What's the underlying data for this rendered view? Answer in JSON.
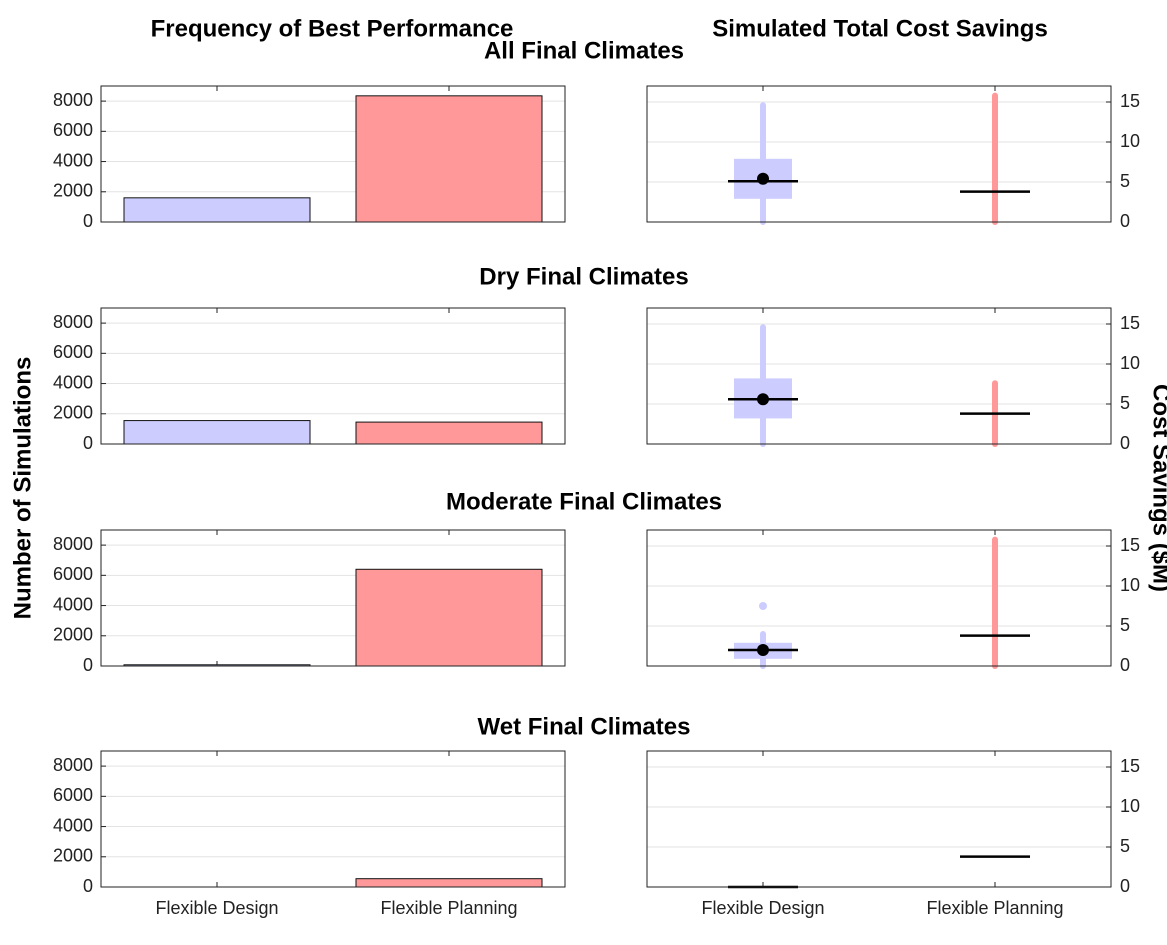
{
  "figure": {
    "column_titles": [
      "Frequency of Best Performance",
      "Simulated Total Cost Savings"
    ],
    "ylabel_left": "Number of Simulations",
    "ylabel_right": "Cost Savings ($M)"
  },
  "chart_data": [
    {
      "type": "bar",
      "title": "All Final Climates",
      "values": [
        1600,
        8350
      ],
      "colors": [
        "#ccccff",
        "#ff9999"
      ],
      "ylim": [
        0,
        9000
      ],
      "yticks": [
        0,
        2000,
        4000,
        6000,
        8000
      ],
      "grid": true
    },
    {
      "type": "box",
      "boxes": [
        {
          "color": "#ccccff",
          "low": 0,
          "q1": 2.9,
          "median": 5.1,
          "q3": 7.9,
          "high": 14.6,
          "mean": 5.4
        },
        {
          "color": "#ff9999",
          "low": 0,
          "median": 3.8,
          "high": 15.8
        }
      ],
      "ylim": [
        0,
        17
      ],
      "yticks": [
        0,
        5,
        10,
        15
      ],
      "grid": true
    },
    {
      "type": "bar",
      "title": "Dry Final Climates",
      "values": [
        1550,
        1450
      ],
      "colors": [
        "#ccccff",
        "#ff9999"
      ],
      "ylim": [
        0,
        9000
      ],
      "yticks": [
        0,
        2000,
        4000,
        6000,
        8000
      ],
      "grid": true
    },
    {
      "type": "box",
      "boxes": [
        {
          "color": "#ccccff",
          "low": 0,
          "q1": 3.2,
          "median": 5.6,
          "q3": 8.2,
          "high": 14.6,
          "mean": 5.6
        },
        {
          "color": "#ff9999",
          "low": 0,
          "median": 3.8,
          "high": 7.6
        }
      ],
      "ylim": [
        0,
        17
      ],
      "yticks": [
        0,
        5,
        10,
        15
      ],
      "grid": true
    },
    {
      "type": "bar",
      "title": "Moderate Final Climates",
      "values": [
        80,
        6400
      ],
      "colors": [
        "#ccccff",
        "#ff9999"
      ],
      "ylim": [
        0,
        9000
      ],
      "yticks": [
        0,
        2000,
        4000,
        6000,
        8000
      ],
      "grid": true
    },
    {
      "type": "box",
      "boxes": [
        {
          "color": "#ccccff",
          "low": 0,
          "q1": 0.9,
          "median": 2.0,
          "q3": 2.9,
          "high": 4.0,
          "mean": 2.0,
          "outliers": [
            7.5
          ]
        },
        {
          "color": "#ff9999",
          "low": 0,
          "median": 3.8,
          "high": 15.8
        }
      ],
      "ylim": [
        0,
        17
      ],
      "yticks": [
        0,
        5,
        10,
        15
      ],
      "grid": true
    },
    {
      "type": "bar",
      "title": "Wet Final Climates",
      "categories": [
        "Flexible Design",
        "Flexible Planning"
      ],
      "values": [
        0,
        550
      ],
      "colors": [
        "#ccccff",
        "#ff9999"
      ],
      "ylim": [
        0,
        9000
      ],
      "yticks": [
        0,
        2000,
        4000,
        6000,
        8000
      ],
      "grid": true
    },
    {
      "type": "box",
      "categories": [
        "Flexible Design",
        "Flexible Planning"
      ],
      "boxes": [
        {
          "color": "#ccccff",
          "median": 0
        },
        {
          "color": "#ff9999",
          "median": 3.8
        }
      ],
      "ylim": [
        0,
        17
      ],
      "yticks": [
        0,
        5,
        10,
        15
      ],
      "grid": true
    }
  ]
}
